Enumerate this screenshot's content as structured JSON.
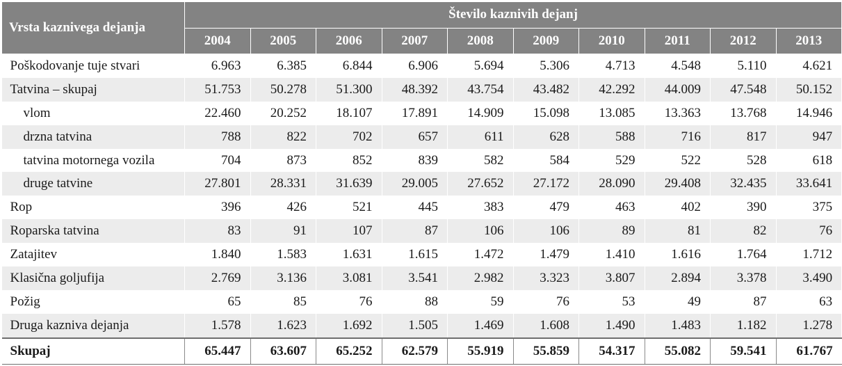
{
  "header": {
    "label_column": "Vrsta kaznivega dejanja",
    "group_title": "Število kaznivih dejanj",
    "years": [
      "2004",
      "2005",
      "2006",
      "2007",
      "2008",
      "2009",
      "2010",
      "2011",
      "2012",
      "2013"
    ]
  },
  "rows": [
    {
      "label": "Poškodovanje tuje stvari",
      "indent": false,
      "values": [
        "6.963",
        "6.385",
        "6.844",
        "6.906",
        "5.694",
        "5.306",
        "4.713",
        "4.548",
        "5.110",
        "4.621"
      ]
    },
    {
      "label": "Tatvina – skupaj",
      "indent": false,
      "values": [
        "51.753",
        "50.278",
        "51.300",
        "48.392",
        "43.754",
        "43.482",
        "42.292",
        "44.009",
        "47.548",
        "50.152"
      ]
    },
    {
      "label": "vlom",
      "indent": true,
      "values": [
        "22.460",
        "20.252",
        "18.107",
        "17.891",
        "14.909",
        "15.098",
        "13.085",
        "13.363",
        "13.768",
        "14.946"
      ]
    },
    {
      "label": "drzna tatvina",
      "indent": true,
      "values": [
        "788",
        "822",
        "702",
        "657",
        "611",
        "628",
        "588",
        "716",
        "817",
        "947"
      ]
    },
    {
      "label": "tatvina motornega vozila",
      "indent": true,
      "values": [
        "704",
        "873",
        "852",
        "839",
        "582",
        "584",
        "529",
        "522",
        "528",
        "618"
      ]
    },
    {
      "label": "druge tatvine",
      "indent": true,
      "values": [
        "27.801",
        "28.331",
        "31.639",
        "29.005",
        "27.652",
        "27.172",
        "28.090",
        "29.408",
        "32.435",
        "33.641"
      ]
    },
    {
      "label": "Rop",
      "indent": false,
      "values": [
        "396",
        "426",
        "521",
        "445",
        "383",
        "479",
        "463",
        "402",
        "390",
        "375"
      ]
    },
    {
      "label": "Roparska tatvina",
      "indent": false,
      "values": [
        "83",
        "91",
        "107",
        "87",
        "106",
        "106",
        "89",
        "81",
        "82",
        "76"
      ]
    },
    {
      "label": "Zatajitev",
      "indent": false,
      "values": [
        "1.840",
        "1.583",
        "1.631",
        "1.615",
        "1.472",
        "1.479",
        "1.410",
        "1.616",
        "1.764",
        "1.712"
      ]
    },
    {
      "label": "Klasična goljufija",
      "indent": false,
      "values": [
        "2.769",
        "3.136",
        "3.081",
        "3.541",
        "2.982",
        "3.323",
        "3.807",
        "2.894",
        "3.378",
        "3.490"
      ]
    },
    {
      "label": "Požig",
      "indent": false,
      "values": [
        "65",
        "85",
        "76",
        "88",
        "59",
        "76",
        "53",
        "49",
        "87",
        "63"
      ]
    },
    {
      "label": "Druga kazniva dejanja",
      "indent": false,
      "values": [
        "1.578",
        "1.623",
        "1.692",
        "1.505",
        "1.469",
        "1.608",
        "1.490",
        "1.483",
        "1.182",
        "1.278"
      ]
    }
  ],
  "total": {
    "label": "Skupaj",
    "values": [
      "65.447",
      "63.607",
      "65.252",
      "62.579",
      "55.919",
      "55.859",
      "54.317",
      "55.082",
      "59.541",
      "61.767"
    ]
  },
  "colors": {
    "header_bg": "#838383",
    "header_text": "#ffffff",
    "stripe": "#ececec"
  }
}
